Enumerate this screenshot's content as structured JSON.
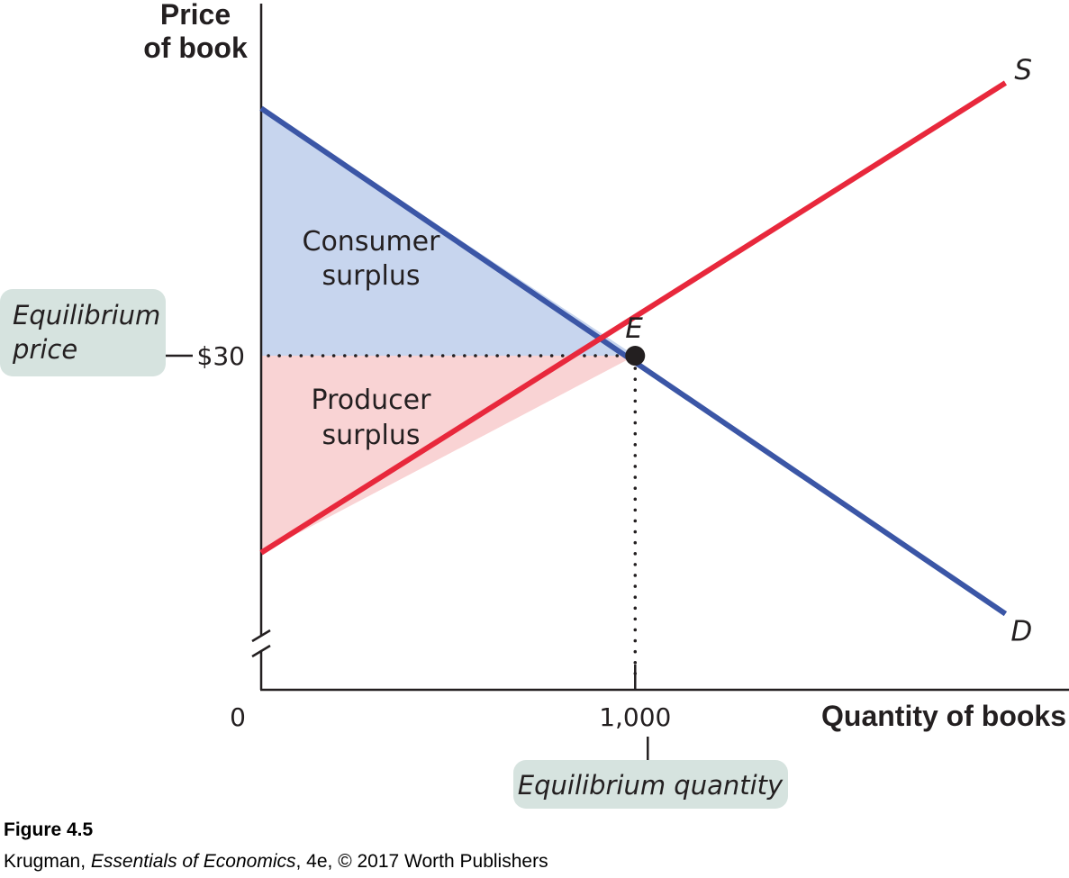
{
  "colors": {
    "demand": "#3b56a6",
    "supply": "#e8283c",
    "consumer_surplus_fill": "#c7d5ee",
    "producer_surplus_fill": "#f9d3d4",
    "callout_fill": "#d6e3df",
    "axis": "#231f20"
  },
  "chart_data": {
    "type": "line",
    "ylabel_line1": "Price",
    "ylabel_line2": "of book",
    "xlabel": "Quantity of books",
    "origin_label": "0",
    "equilibrium": {
      "label": "E",
      "x": 1000,
      "y": 30,
      "x_tick": "1,000",
      "y_tick": "$30"
    },
    "series": [
      {
        "name": "S",
        "x": [
          0,
          1990
        ],
        "y": [
          15.27,
          50.4
        ]
      },
      {
        "name": "D",
        "x": [
          0,
          1990
        ],
        "y": [
          48.5,
          10.7
        ]
      }
    ],
    "areas": {
      "consumer_surplus": {
        "line1": "Consumer",
        "line2": "surplus"
      },
      "producer_surplus": {
        "line1": "Producer",
        "line2": "surplus"
      }
    },
    "callouts": {
      "price": {
        "line1": "Equilibrium",
        "line2": "price"
      },
      "quantity": {
        "text": "Equilibrium quantity"
      }
    },
    "axis_break": true,
    "xlim": [
      0,
      2160
    ],
    "ylim": [
      5.02,
      56.6
    ]
  },
  "caption": {
    "figure": "Figure 4.5",
    "author": "Krugman,",
    "book": "Essentials of Economics",
    "rest": ", 4e, © 2017 Worth Publishers"
  }
}
